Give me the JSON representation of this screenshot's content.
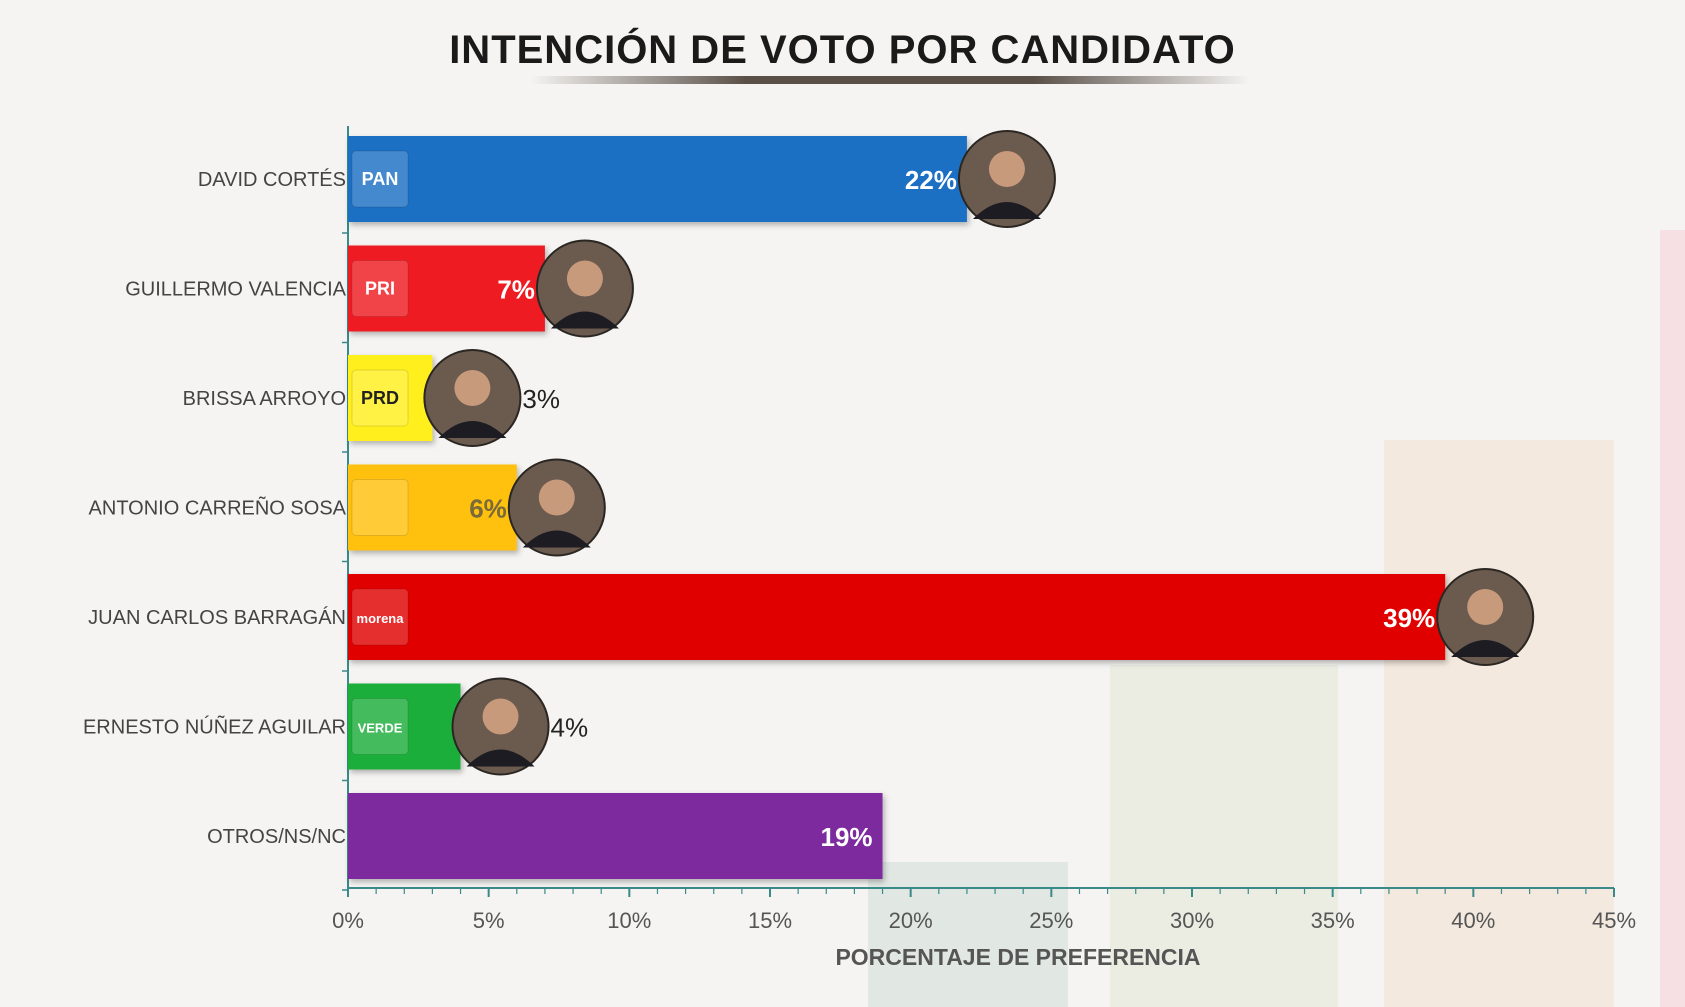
{
  "chart_data": {
    "type": "bar",
    "orientation": "horizontal",
    "title": "INTENCIÓN DE VOTO POR CANDIDATO",
    "xlabel": "PORCENTAJE DE PREFERENCIA",
    "ylabel": "",
    "xlim": [
      0,
      45
    ],
    "ticks": [
      "0%",
      "5%",
      "10%",
      "15%",
      "20%",
      "25%",
      "30%",
      "35%",
      "40%",
      "45%"
    ],
    "grid": false,
    "categories": [
      "DAVID CORTÉS",
      "GUILLERMO VALENCIA",
      "BRISSA ARROYO",
      "ANTONIO CARREÑO SOSA",
      "JUAN CARLOS BARRAGÁN",
      "ERNESTO NÚÑEZ AGUILAR",
      "OTROS/NS/NC"
    ],
    "values": [
      22,
      7,
      3,
      6,
      39,
      4,
      19
    ],
    "value_labels": [
      "22%",
      "7%",
      "3%",
      "6%",
      "39%",
      "4%",
      "19%"
    ],
    "party_labels": [
      "PAN",
      "PRI",
      "PRD",
      "",
      "morena",
      "VERDE",
      ""
    ],
    "colors": [
      "#1a6fc4",
      "#ee1c24",
      "#ffef1a",
      "#ffc107",
      "#e00000",
      "#1fae3a",
      "#7d2b9e"
    ],
    "label_colors": [
      "#ffffff",
      "#ffffff",
      "#222222",
      "#7a6a3a",
      "#ffffff",
      "#222222",
      "#ffffff"
    ]
  }
}
